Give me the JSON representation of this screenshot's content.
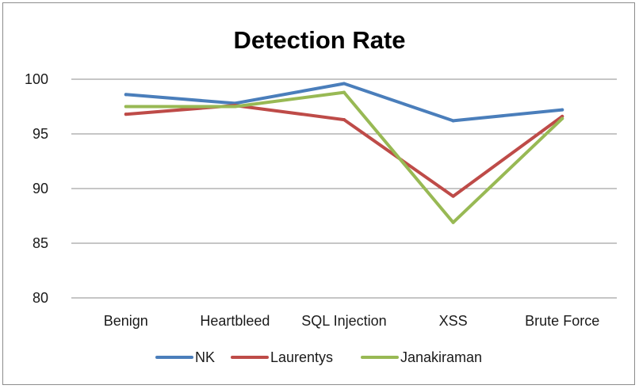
{
  "chart_data": {
    "type": "line",
    "title": "Detection Rate",
    "xlabel": "",
    "ylabel": "",
    "categories": [
      "Benign",
      "Heartbleed",
      "SQL Injection",
      "XSS",
      "Brute Force"
    ],
    "y_ticks": [
      80,
      85,
      90,
      95,
      100
    ],
    "ylim": [
      80,
      100
    ],
    "grid": true,
    "legend_position": "bottom",
    "series": [
      {
        "name": "NK",
        "color": "#4a7ebb",
        "values": [
          98.6,
          97.8,
          99.6,
          96.2,
          97.2
        ]
      },
      {
        "name": "Laurentys",
        "color": "#be4b48",
        "values": [
          96.8,
          97.6,
          96.3,
          89.3,
          96.6
        ]
      },
      {
        "name": "Janakiraman",
        "color": "#98b954",
        "values": [
          97.5,
          97.5,
          98.8,
          86.9,
          96.4
        ]
      }
    ]
  }
}
